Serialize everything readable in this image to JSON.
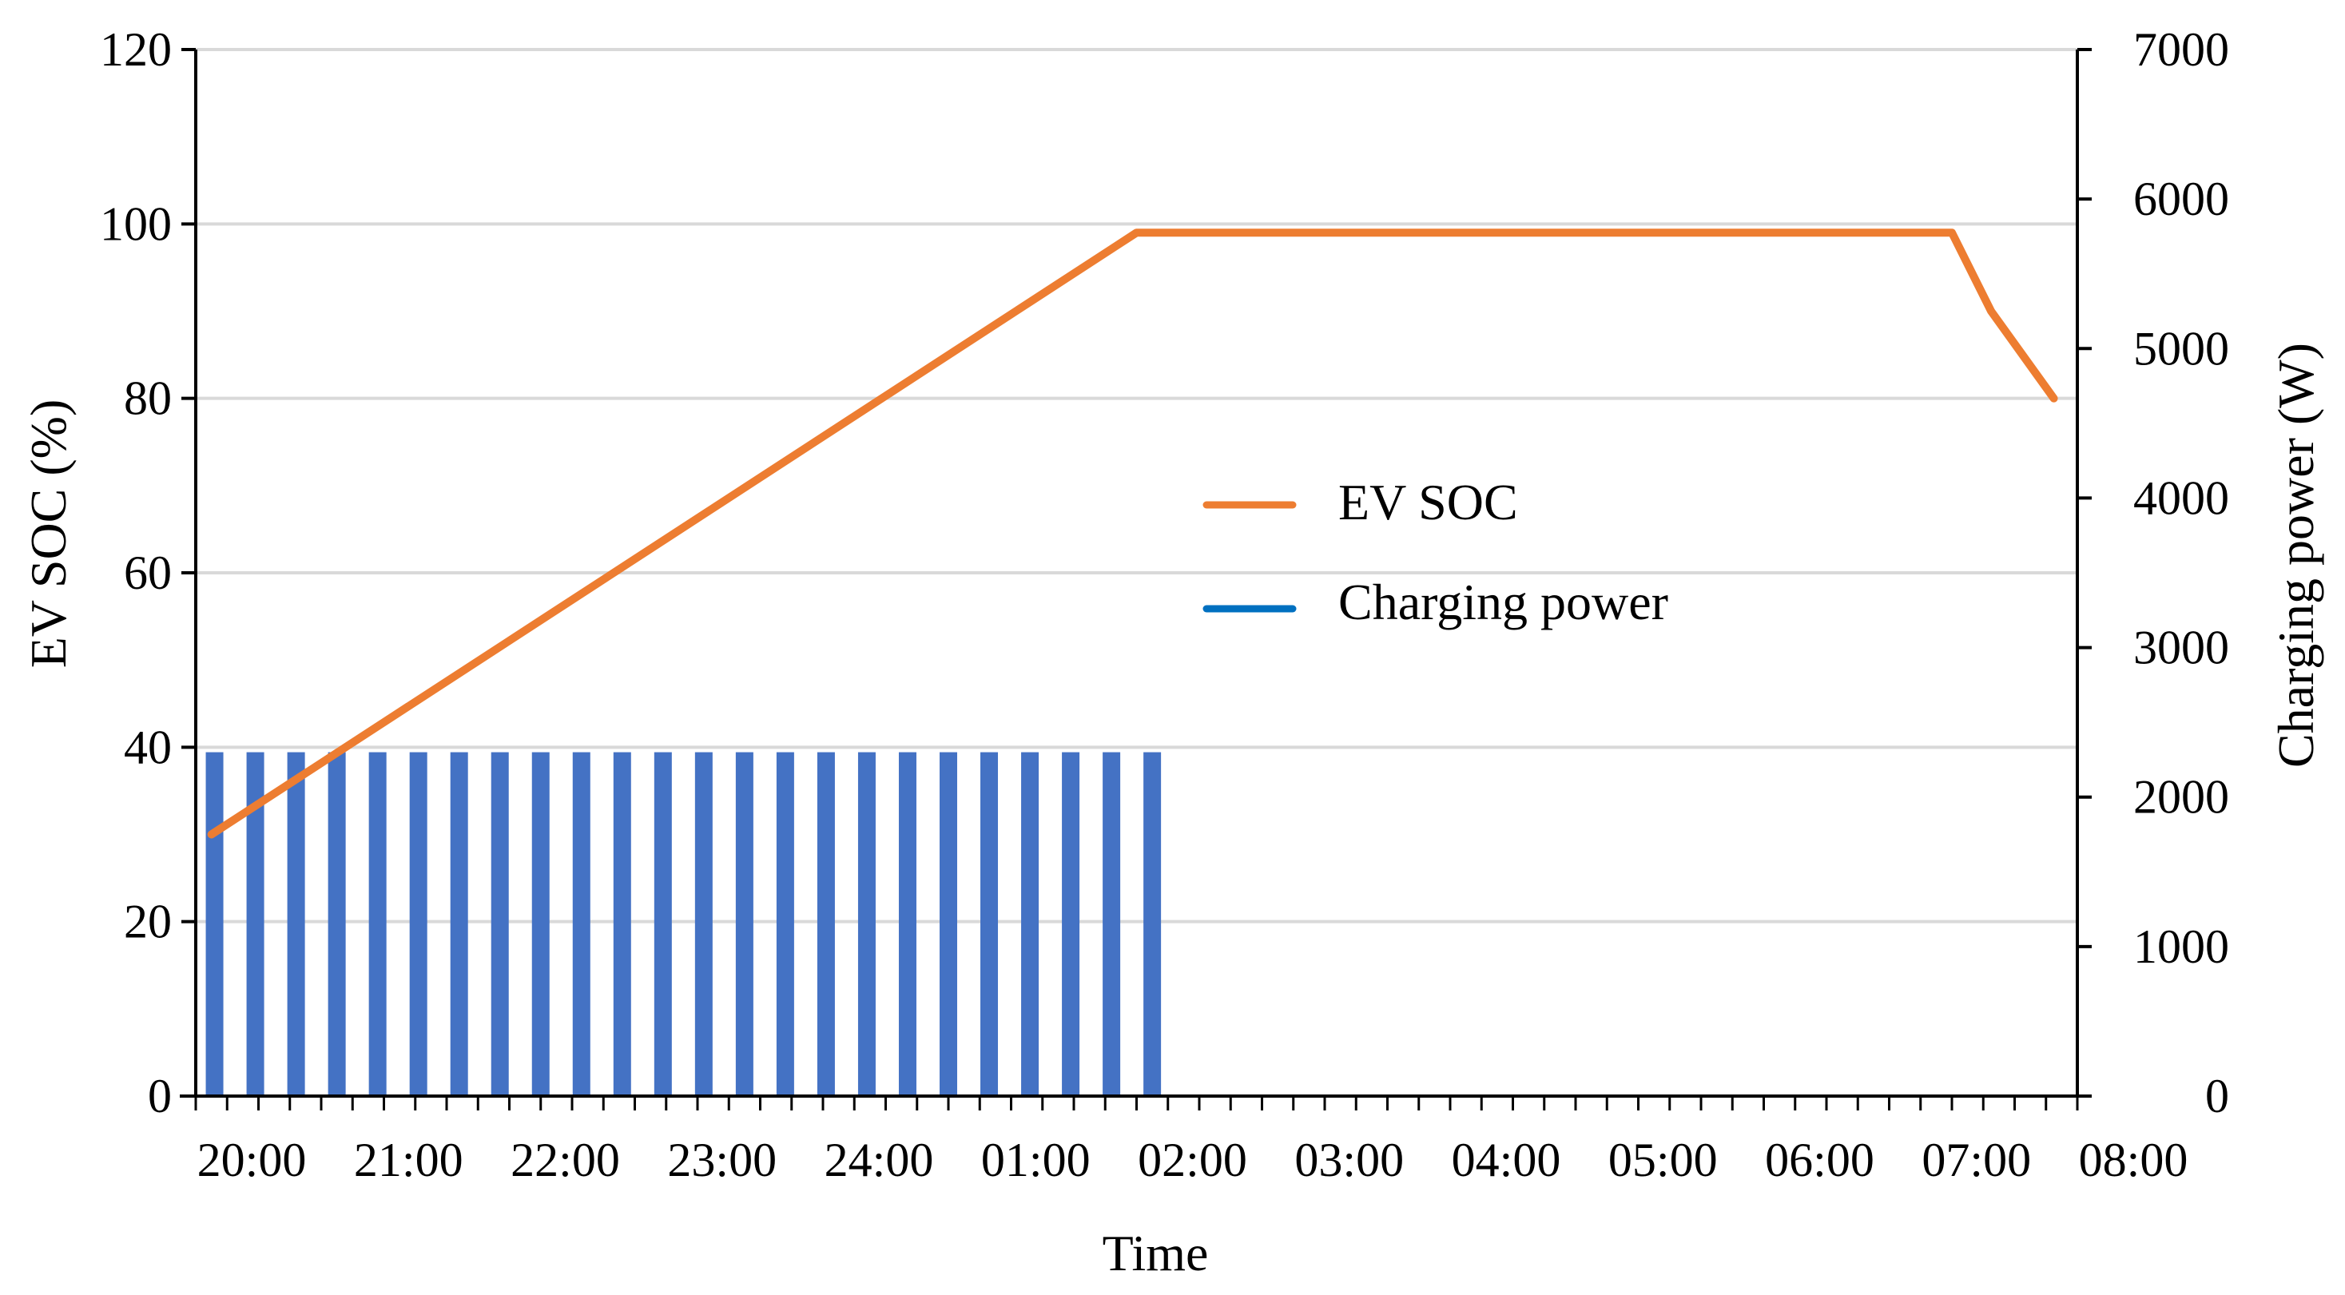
{
  "chart_data": {
    "type": "bar+line",
    "title": "",
    "xlabel": "Time",
    "ylabel_left": "EV SOC (%)",
    "ylabel_right": "Charging power (W)",
    "x_ticks": [
      "20:00",
      "21:00",
      "22:00",
      "23:00",
      "24:00",
      "01:00",
      "02:00",
      "03:00",
      "04:00",
      "05:00",
      "06:00",
      "07:00",
      "08:00"
    ],
    "x_hours": [
      0,
      1,
      2,
      3,
      4,
      5,
      6,
      7,
      8,
      9,
      10,
      11,
      12
    ],
    "y_left": {
      "min": 0,
      "max": 120,
      "ticks": [
        0,
        20,
        40,
        60,
        80,
        100,
        120
      ]
    },
    "y_right": {
      "min": 0,
      "max": 7000,
      "ticks": [
        0,
        1000,
        2000,
        3000,
        4000,
        5000,
        6000,
        7000
      ]
    },
    "grid": true,
    "legend_position": "center",
    "colors": {
      "soc": "#ED7D31",
      "power": "#4472C4",
      "power_legend": "#0070C0",
      "grid": "#D9D9D9",
      "axis": "#000000"
    },
    "series": [
      {
        "name": "EV SOC",
        "type": "line",
        "axis": "left",
        "x_hours": [
          0.1,
          6.0,
          11.2,
          11.45,
          11.85
        ],
        "values": [
          30,
          99,
          99,
          90,
          80
        ]
      },
      {
        "name": "Charging power",
        "type": "bar",
        "axis": "right",
        "bar_count": 24,
        "bar_start_hour": 0.12,
        "bar_step_hours": 0.26,
        "value": 2300
      }
    ],
    "legend": [
      "EV SOC",
      "Charging power"
    ]
  }
}
